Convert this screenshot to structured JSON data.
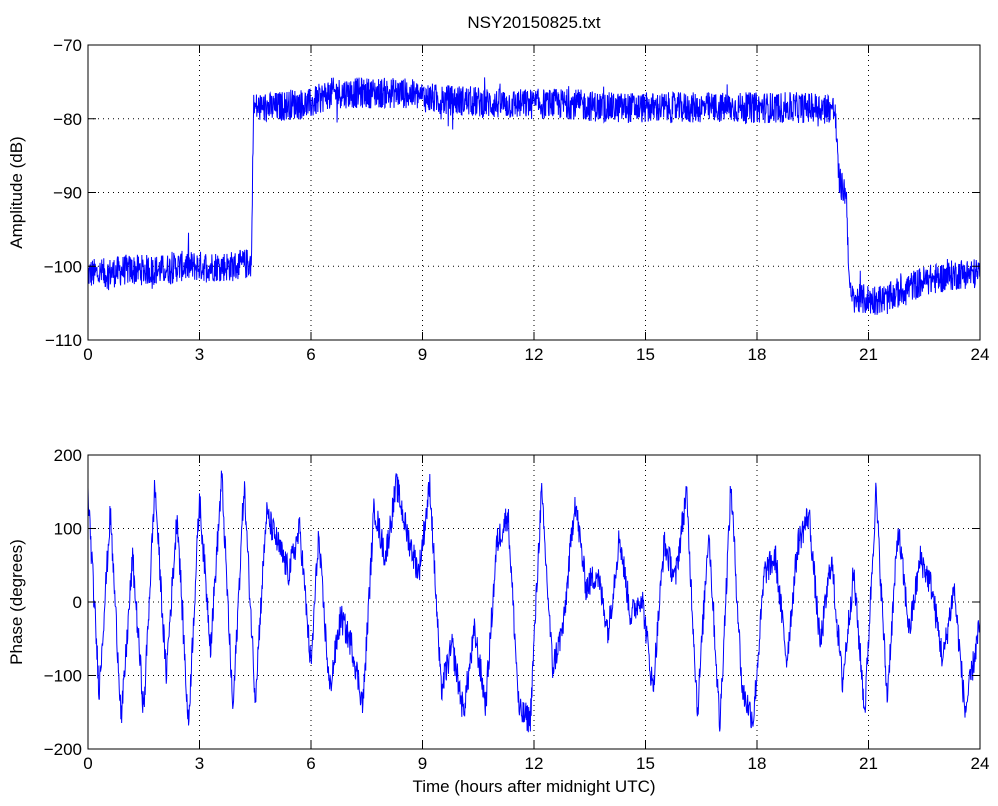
{
  "chart_data": [
    {
      "type": "line",
      "title": "NSY20150825.txt",
      "xlabel": "",
      "ylabel": "Amplitude (dB)",
      "xlim": [
        0,
        24
      ],
      "ylim": [
        -110,
        -70
      ],
      "xticks": [
        0,
        3,
        6,
        9,
        12,
        15,
        18,
        21,
        24
      ],
      "yticks": [
        -110,
        -100,
        -90,
        -80,
        -70
      ],
      "xtick_labels": [
        "0",
        "3",
        "6",
        "9",
        "12",
        "15",
        "18",
        "21",
        "24"
      ],
      "ytick_labels": [
        "−110",
        "−100",
        "−90",
        "−80",
        "−70"
      ],
      "grid": true,
      "color": "#0000ff",
      "series": [
        {
          "x": [
            0,
            0.5,
            1,
            1.5,
            2,
            2.5,
            3,
            3.5,
            4,
            4.4,
            4.45,
            4.5,
            5,
            5.5,
            6,
            6.5,
            7,
            7.5,
            8,
            8.5,
            9,
            9.5,
            10,
            11,
            12,
            13,
            14,
            15,
            16,
            17,
            18,
            19,
            19.5,
            20,
            20.1,
            20.2,
            20.3,
            20.4,
            20.5,
            20.6,
            21,
            21.5,
            22,
            22.5,
            23,
            23.5,
            24
          ],
          "y": [
            -101,
            -101,
            -100.5,
            -100.5,
            -100.5,
            -100,
            -100,
            -100,
            -100,
            -99.5,
            -78.5,
            -78.5,
            -78.5,
            -78,
            -78,
            -76.5,
            -76.5,
            -76.5,
            -76.5,
            -76.5,
            -77,
            -77.5,
            -77.5,
            -78,
            -78,
            -78,
            -78.5,
            -78.5,
            -78.5,
            -78.5,
            -78.5,
            -78.5,
            -78.5,
            -78.5,
            -79,
            -88,
            -89.5,
            -90,
            -104,
            -104.5,
            -104.5,
            -104.5,
            -103,
            -102,
            -101.5,
            -101,
            -101
          ]
        }
      ]
    },
    {
      "type": "line",
      "title": "",
      "xlabel": "Time (hours after midnight UTC)",
      "ylabel": "Phase (degrees)",
      "xlim": [
        0,
        24
      ],
      "ylim": [
        -200,
        200
      ],
      "xticks": [
        0,
        3,
        6,
        9,
        12,
        15,
        18,
        21,
        24
      ],
      "yticks": [
        -200,
        -100,
        0,
        100,
        200
      ],
      "xtick_labels": [
        "0",
        "3",
        "6",
        "9",
        "12",
        "15",
        "18",
        "21",
        "24"
      ],
      "ytick_labels": [
        "−200",
        "−100",
        "0",
        "100",
        "200"
      ],
      "grid": true,
      "color": "#0000ff",
      "series": [
        {
          "x": [
            0,
            0.3,
            0.6,
            0.9,
            1.2,
            1.5,
            1.8,
            2.1,
            2.4,
            2.7,
            3.0,
            3.3,
            3.6,
            3.9,
            4.2,
            4.5,
            4.8,
            5.1,
            5.4,
            5.7,
            6.0,
            6.2,
            6.5,
            6.8,
            7.1,
            7.4,
            7.7,
            8.0,
            8.3,
            8.6,
            8.9,
            9.2,
            9.5,
            9.8,
            10.1,
            10.4,
            10.7,
            11.0,
            11.3,
            11.6,
            11.9,
            12.2,
            12.5,
            12.8,
            13.1,
            13.4,
            13.7,
            14.0,
            14.3,
            14.6,
            14.9,
            15.2,
            15.5,
            15.8,
            16.1,
            16.4,
            16.7,
            17.0,
            17.3,
            17.6,
            17.9,
            18.2,
            18.5,
            18.8,
            19.1,
            19.4,
            19.7,
            20.0,
            20.3,
            20.6,
            20.9,
            21.2,
            21.5,
            21.8,
            22.1,
            22.4,
            22.7,
            23.0,
            23.3,
            23.6,
            24.0
          ],
          "y": [
            150,
            -120,
            120,
            -160,
            60,
            -150,
            160,
            -100,
            120,
            -170,
            140,
            -60,
            170,
            -150,
            160,
            -130,
            120,
            80,
            40,
            100,
            -90,
            90,
            -120,
            -20,
            -60,
            -140,
            130,
            60,
            160,
            90,
            40,
            160,
            -120,
            -60,
            -150,
            -40,
            -140,
            80,
            120,
            -150,
            -160,
            150,
            -90,
            -30,
            140,
            20,
            40,
            -40,
            90,
            -20,
            10,
            -120,
            80,
            30,
            150,
            -150,
            100,
            -170,
            160,
            -120,
            -160,
            40,
            60,
            -80,
            80,
            120,
            -60,
            60,
            -110,
            40,
            -150,
            150,
            -130,
            100,
            -40,
            60,
            20,
            -80,
            20,
            -150,
            -30
          ]
        }
      ]
    }
  ]
}
